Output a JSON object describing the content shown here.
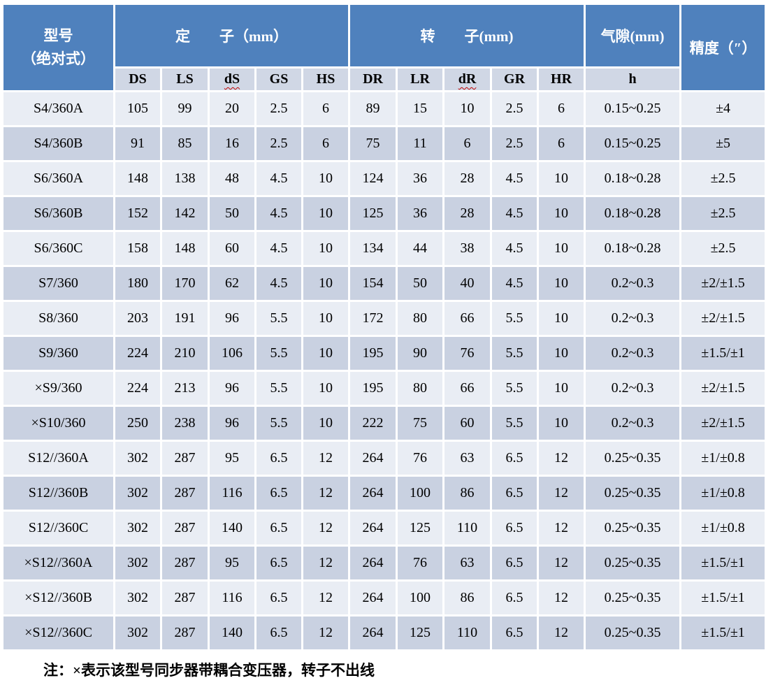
{
  "colors": {
    "header_blue": "#4F81BD",
    "subheader_bg": "#D0D7E5",
    "row_light": "#E9EDF4",
    "row_dark": "#C9D1E1",
    "grid_white": "#FFFFFF",
    "wavy_red": "#C00000"
  },
  "table": {
    "model_header_line1": "型号",
    "model_header_line2": "（绝对式）",
    "groups": [
      {
        "label": "定　　子（mm）"
      },
      {
        "label": "转　　子(mm)"
      },
      {
        "label": "气隙(mm)"
      }
    ],
    "precision_header": "精度（″）",
    "subheaders": [
      {
        "label": "DS",
        "wavy": false
      },
      {
        "label": "LS",
        "wavy": false
      },
      {
        "label": "dS",
        "wavy": true
      },
      {
        "label": "GS",
        "wavy": false
      },
      {
        "label": "HS",
        "wavy": false
      },
      {
        "label": "DR",
        "wavy": false
      },
      {
        "label": "LR",
        "wavy": false
      },
      {
        "label": "dR",
        "wavy": true
      },
      {
        "label": "GR",
        "wavy": false
      },
      {
        "label": "HR",
        "wavy": false
      },
      {
        "label": "h",
        "wavy": false
      }
    ],
    "rows": [
      {
        "model": "S4/360A",
        "values": [
          "105",
          "99",
          "20",
          "2.5",
          "6",
          "89",
          "15",
          "10",
          "2.5",
          "6",
          "0.15~0.25",
          "±4"
        ]
      },
      {
        "model": "S4/360B",
        "values": [
          "91",
          "85",
          "16",
          "2.5",
          "6",
          "75",
          "11",
          "6",
          "2.5",
          "6",
          "0.15~0.25",
          "±5"
        ]
      },
      {
        "model": "S6/360A",
        "values": [
          "148",
          "138",
          "48",
          "4.5",
          "10",
          "124",
          "36",
          "28",
          "4.5",
          "10",
          "0.18~0.28",
          "±2.5"
        ]
      },
      {
        "model": "S6/360B",
        "values": [
          "152",
          "142",
          "50",
          "4.5",
          "10",
          "125",
          "36",
          "28",
          "4.5",
          "10",
          "0.18~0.28",
          "±2.5"
        ]
      },
      {
        "model": "S6/360C",
        "values": [
          "158",
          "148",
          "60",
          "4.5",
          "10",
          "134",
          "44",
          "38",
          "4.5",
          "10",
          "0.18~0.28",
          "±2.5"
        ]
      },
      {
        "model": "S7/360",
        "values": [
          "180",
          "170",
          "62",
          "4.5",
          "10",
          "154",
          "50",
          "40",
          "4.5",
          "10",
          "0.2~0.3",
          "±2/±1.5"
        ]
      },
      {
        "model": "S8/360",
        "values": [
          "203",
          "191",
          "96",
          "5.5",
          "10",
          "172",
          "80",
          "66",
          "5.5",
          "10",
          "0.2~0.3",
          "±2/±1.5"
        ]
      },
      {
        "model": "S9/360",
        "values": [
          "224",
          "210",
          "106",
          "5.5",
          "10",
          "195",
          "90",
          "76",
          "5.5",
          "10",
          "0.2~0.3",
          "±1.5/±1"
        ]
      },
      {
        "model": "×S9/360",
        "values": [
          "224",
          "213",
          "96",
          "5.5",
          "10",
          "195",
          "80",
          "66",
          "5.5",
          "10",
          "0.2~0.3",
          "±2/±1.5"
        ]
      },
      {
        "model": "×S10/360",
        "values": [
          "250",
          "238",
          "96",
          "5.5",
          "10",
          "222",
          "75",
          "60",
          "5.5",
          "10",
          "0.2~0.3",
          "±2/±1.5"
        ]
      },
      {
        "model": "S12//360A",
        "values": [
          "302",
          "287",
          "95",
          "6.5",
          "12",
          "264",
          "76",
          "63",
          "6.5",
          "12",
          "0.25~0.35",
          "±1/±0.8"
        ]
      },
      {
        "model": "S12//360B",
        "values": [
          "302",
          "287",
          "116",
          "6.5",
          "12",
          "264",
          "100",
          "86",
          "6.5",
          "12",
          "0.25~0.35",
          "±1/±0.8"
        ]
      },
      {
        "model": "S12//360C",
        "values": [
          "302",
          "287",
          "140",
          "6.5",
          "12",
          "264",
          "125",
          "110",
          "6.5",
          "12",
          "0.25~0.35",
          "±1/±0.8"
        ]
      },
      {
        "model": "×S12//360A",
        "values": [
          "302",
          "287",
          "95",
          "6.5",
          "12",
          "264",
          "76",
          "63",
          "6.5",
          "12",
          "0.25~0.35",
          "±1.5/±1"
        ]
      },
      {
        "model": "×S12//360B",
        "values": [
          "302",
          "287",
          "116",
          "6.5",
          "12",
          "264",
          "100",
          "86",
          "6.5",
          "12",
          "0.25~0.35",
          "±1.5/±1"
        ]
      },
      {
        "model": "×S12//360C",
        "values": [
          "302",
          "287",
          "140",
          "6.5",
          "12",
          "264",
          "125",
          "110",
          "6.5",
          "12",
          "0.25~0.35",
          "±1.5/±1"
        ]
      }
    ]
  },
  "note": "注：×表示该型号同步器带耦合变压器，转子不出线"
}
